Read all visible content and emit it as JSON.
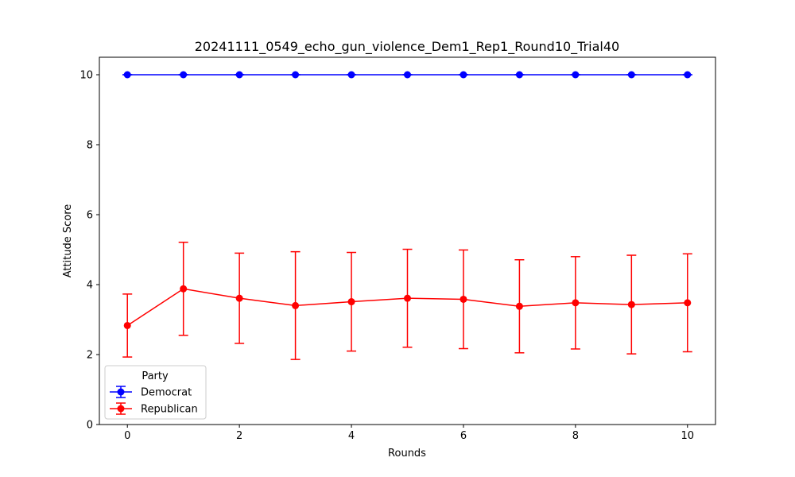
{
  "chart_data": {
    "type": "line",
    "title": "20241111_0549_echo_gun_violence_Dem1_Rep1_Round10_Trial40",
    "xlabel": "Rounds",
    "ylabel": "Attitude Score",
    "x": [
      0,
      1,
      2,
      3,
      4,
      5,
      6,
      7,
      8,
      9,
      10
    ],
    "xlim": [
      -0.5,
      10.5
    ],
    "ylim": [
      0,
      10.5
    ],
    "xticks": [
      0,
      2,
      4,
      6,
      8,
      10
    ],
    "yticks": [
      0,
      2,
      4,
      6,
      8,
      10
    ],
    "grid": false,
    "legend": {
      "title": "Party",
      "placement": "lower-left"
    },
    "series": [
      {
        "name": "Democrat",
        "color": "#0000ff",
        "values": [
          10,
          10,
          10,
          10,
          10,
          10,
          10,
          10,
          10,
          10,
          10
        ],
        "errors": [
          0,
          0,
          0,
          0,
          0,
          0,
          0,
          0,
          0,
          0,
          0
        ]
      },
      {
        "name": "Republican",
        "color": "#ff0000",
        "values": [
          2.83,
          3.88,
          3.61,
          3.4,
          3.51,
          3.61,
          3.58,
          3.38,
          3.48,
          3.43,
          3.48
        ],
        "errors": [
          0.9,
          1.33,
          1.29,
          1.54,
          1.41,
          1.4,
          1.41,
          1.33,
          1.32,
          1.41,
          1.4
        ]
      }
    ]
  }
}
